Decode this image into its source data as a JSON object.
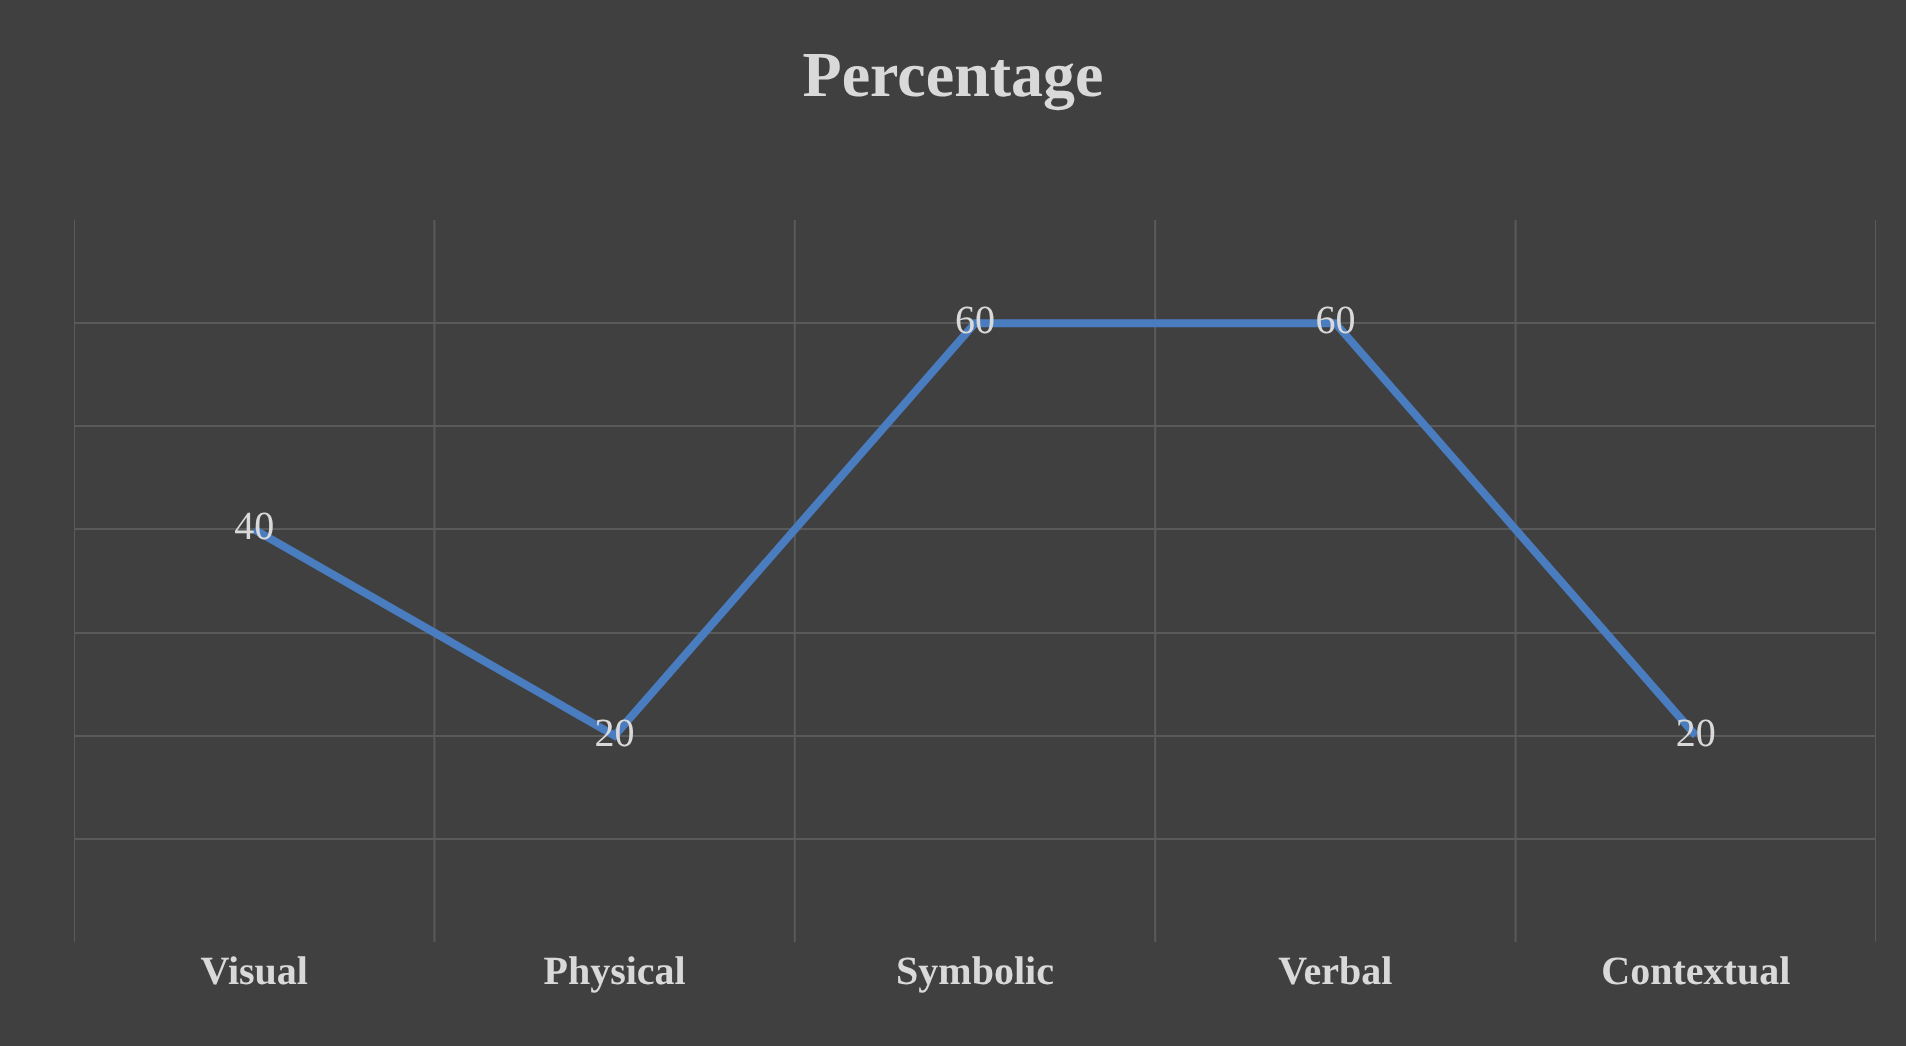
{
  "chart_data": {
    "type": "line",
    "title": "Percentage",
    "categories": [
      "Visual",
      "Physical",
      "Symbolic",
      "Verbal",
      "Contextual"
    ],
    "series": [
      {
        "color": "#4a7cc0",
        "values": [
          40,
          20,
          60,
          60,
          20
        ]
      }
    ],
    "data_labels": true,
    "marker": "none",
    "line_style": "solid",
    "ylim": [
      0,
      70
    ],
    "yticks": [
      {
        "value": 10,
        "label": null
      },
      {
        "value": 20,
        "label": null
      },
      {
        "value": 30,
        "label": null
      },
      {
        "value": 40,
        "label": null
      },
      {
        "value": 50,
        "label": null
      },
      {
        "value": 60,
        "label": null
      }
    ],
    "tick_labels": "x",
    "grid": true
  }
}
